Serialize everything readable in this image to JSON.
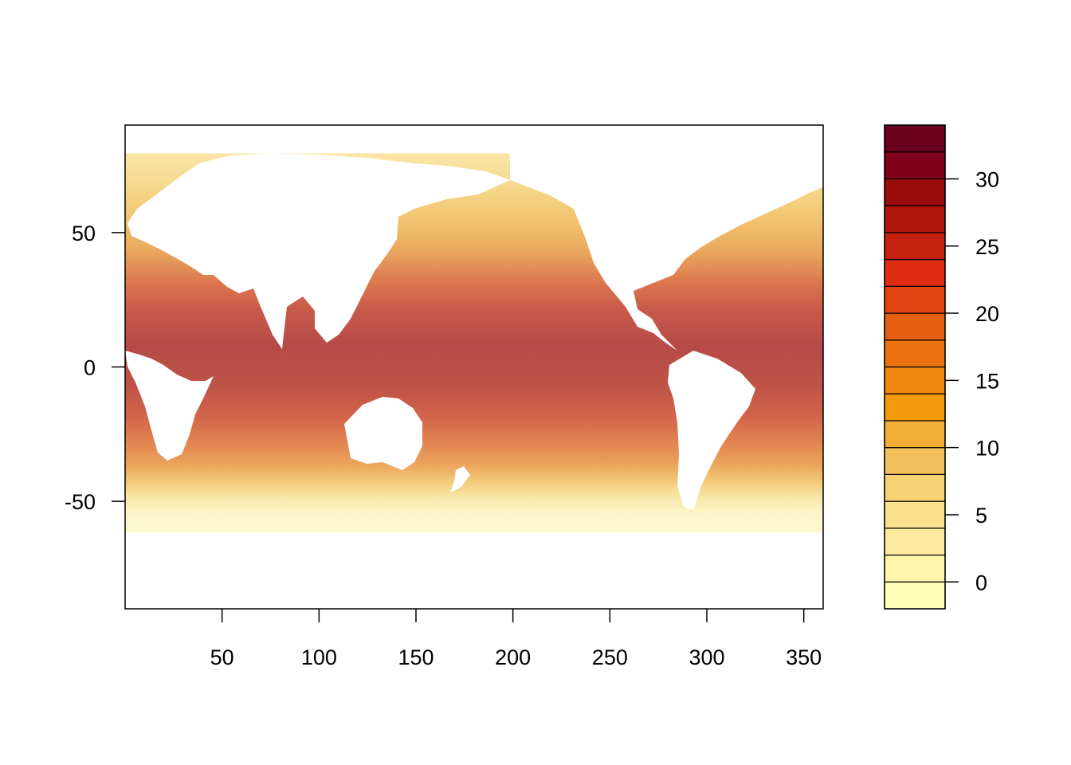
{
  "chart_data": {
    "type": "heatmap",
    "title": "",
    "xlabel": "",
    "ylabel": "",
    "xlim": [
      0,
      360
    ],
    "ylim": [
      -90,
      90
    ],
    "x_ticks": [
      {
        "value": 50,
        "label": "50"
      },
      {
        "value": 100,
        "label": "100"
      },
      {
        "value": 150,
        "label": "150"
      },
      {
        "value": 200,
        "label": "200"
      },
      {
        "value": 250,
        "label": "250"
      },
      {
        "value": 300,
        "label": "300"
      },
      {
        "value": 350,
        "label": "350"
      }
    ],
    "y_ticks": [
      {
        "value": 50,
        "label": "50"
      },
      {
        "value": 0,
        "label": "0"
      },
      {
        "value": -50,
        "label": "-50"
      }
    ],
    "colorbar": {
      "range": [
        -2,
        34
      ],
      "breaks": [
        -2,
        0,
        2,
        4,
        6,
        8,
        10,
        12,
        14,
        16,
        18,
        20,
        22,
        24,
        26,
        28,
        30,
        32,
        34
      ],
      "colors": [
        "#FFFFB7",
        "#FFF6A9",
        "#FEEA9F",
        "#FBE18E",
        "#F6D275",
        "#F3C15C",
        "#F2AD35",
        "#F39B0B",
        "#EF860D",
        "#EC720F",
        "#E65E11",
        "#E34413",
        "#DD2C12",
        "#C5210F",
        "#B1160E",
        "#990A0A",
        "#80001A",
        "#68001E"
      ],
      "tick_labels": [
        {
          "value": 0,
          "label": "0"
        },
        {
          "value": 5,
          "label": "5"
        },
        {
          "value": 10,
          "label": "10"
        },
        {
          "value": 15,
          "label": "15"
        },
        {
          "value": 20,
          "label": "20"
        },
        {
          "value": 25,
          "label": "25"
        },
        {
          "value": 30,
          "label": "30"
        }
      ]
    },
    "field_description_zones": [
      {
        "lat_range": [
          60,
          80
        ],
        "value": 6
      },
      {
        "lat_range": [
          40,
          60
        ],
        "value": 12
      },
      {
        "lat_range": [
          20,
          40
        ],
        "value": 22
      },
      {
        "lat_range": [
          -20,
          20
        ],
        "value": 28
      },
      {
        "lat_range": [
          -40,
          -20
        ],
        "value": 20
      },
      {
        "lat_range": [
          -55,
          -40
        ],
        "value": 10
      },
      {
        "lat_range": [
          -65,
          -55
        ],
        "value": 2
      }
    ]
  }
}
